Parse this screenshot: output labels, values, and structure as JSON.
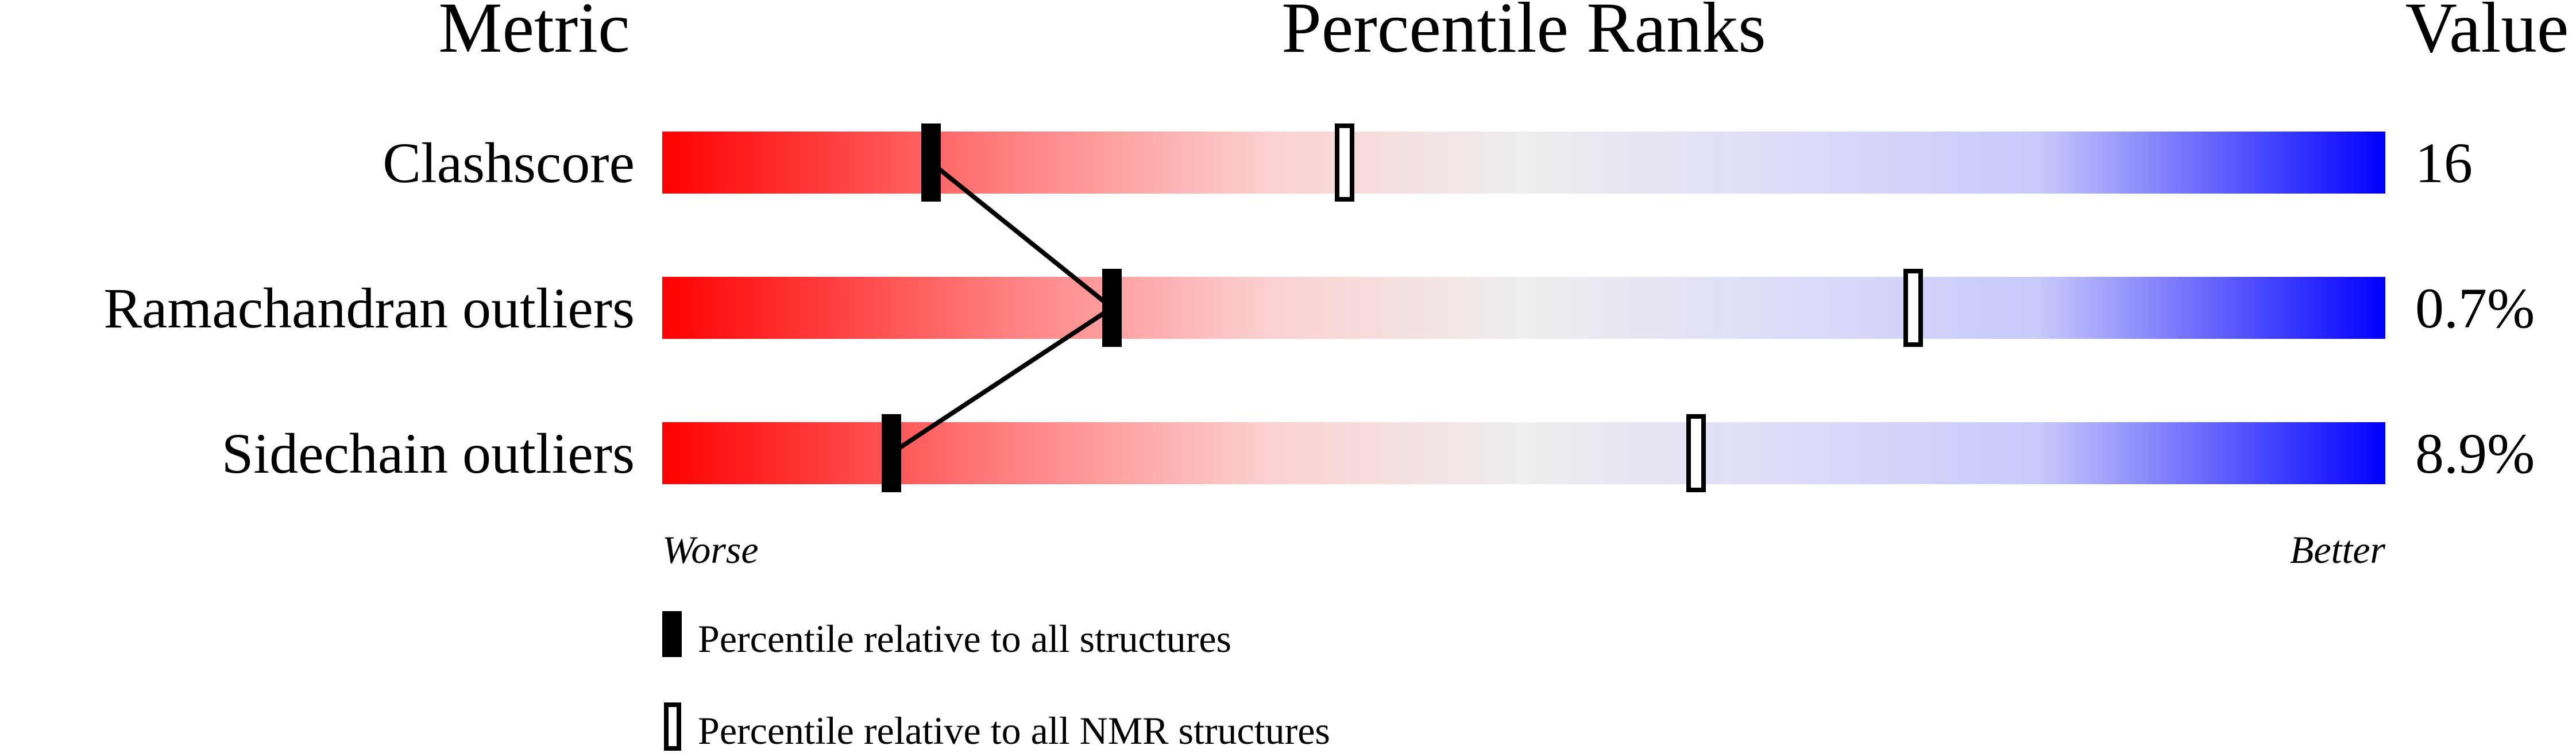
{
  "chart_data": {
    "type": "percentile-slider",
    "headers": {
      "metric": "Metric",
      "ranks": "Percentile Ranks",
      "value": "Value"
    },
    "axis": {
      "left_label": "Worse",
      "right_label": "Better",
      "range": [
        0,
        100
      ]
    },
    "rows": [
      {
        "metric": "Clashscore",
        "value": "16",
        "percentile_all": 15.6,
        "percentile_nmr": 39.6
      },
      {
        "metric": "Ramachandran outliers",
        "value": "0.7%",
        "percentile_all": 26.1,
        "percentile_nmr": 72.6
      },
      {
        "metric": "Sidechain outliers",
        "value": "8.9%",
        "percentile_all": 13.3,
        "percentile_nmr": 60.0
      }
    ],
    "legend": [
      {
        "marker": "filled",
        "label": "Percentile relative to all structures"
      },
      {
        "marker": "open",
        "label": "Percentile relative to all NMR structures"
      }
    ],
    "colors": {
      "worse": "#ff0000",
      "middle": "#eeeeee",
      "better": "#0000ff",
      "marker": "#000000"
    }
  }
}
